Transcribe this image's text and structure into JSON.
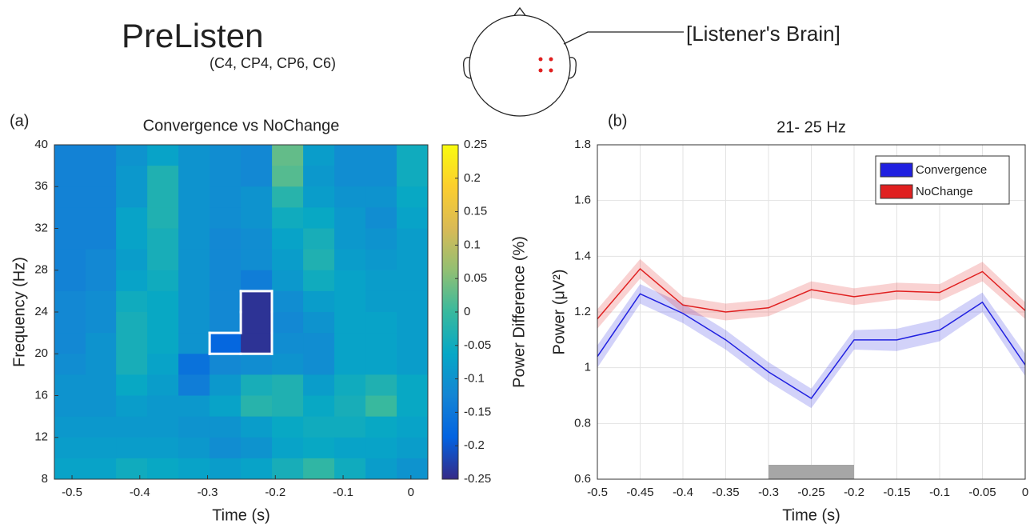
{
  "header": {
    "title": "PreListen",
    "subtitle": "(C4, CP4, CP6, C6)",
    "head_label": "[Listener's Brain]"
  },
  "chart_data": [
    {
      "type": "heatmap",
      "panel": "(a)",
      "title": "Convergence vs NoChange",
      "xlabel": "Time (s)",
      "ylabel": "Frequency (Hz)",
      "colorbar_label": "Power Difference (%)",
      "x": [
        -0.503,
        -0.457,
        -0.412,
        -0.366,
        -0.32,
        -0.274,
        -0.228,
        -0.182,
        -0.136,
        -0.09,
        -0.044,
        0.002
      ],
      "y": [
        39,
        37,
        35,
        33,
        31,
        29,
        27,
        25,
        23,
        21,
        19,
        17,
        15,
        13,
        11,
        9
      ],
      "z": [
        [
          -0.13,
          -0.13,
          -0.1,
          -0.07,
          -0.1,
          -0.11,
          -0.12,
          0.03,
          -0.08,
          -0.11,
          -0.11,
          -0.05
        ],
        [
          -0.13,
          -0.13,
          -0.09,
          -0.03,
          -0.1,
          -0.11,
          -0.12,
          0.02,
          -0.09,
          -0.11,
          -0.11,
          -0.05
        ],
        [
          -0.13,
          -0.13,
          -0.09,
          -0.03,
          -0.1,
          -0.11,
          -0.1,
          -0.02,
          -0.08,
          -0.1,
          -0.1,
          -0.06
        ],
        [
          -0.13,
          -0.13,
          -0.07,
          -0.03,
          -0.1,
          -0.11,
          -0.1,
          -0.05,
          -0.06,
          -0.09,
          -0.11,
          -0.07
        ],
        [
          -0.13,
          -0.13,
          -0.07,
          -0.04,
          -0.1,
          -0.12,
          -0.11,
          -0.07,
          -0.04,
          -0.09,
          -0.1,
          -0.08
        ],
        [
          -0.13,
          -0.12,
          -0.08,
          -0.04,
          -0.1,
          -0.12,
          -0.11,
          -0.08,
          -0.03,
          -0.08,
          -0.09,
          -0.08
        ],
        [
          -0.13,
          -0.12,
          -0.07,
          -0.05,
          -0.1,
          -0.12,
          -0.14,
          -0.09,
          -0.05,
          -0.07,
          -0.08,
          -0.08
        ],
        [
          -0.12,
          -0.11,
          -0.05,
          -0.06,
          -0.1,
          -0.12,
          -0.24,
          -0.11,
          -0.08,
          -0.07,
          -0.08,
          -0.08
        ],
        [
          -0.12,
          -0.11,
          -0.04,
          -0.06,
          -0.1,
          -0.12,
          -0.24,
          -0.12,
          -0.1,
          -0.07,
          -0.07,
          -0.08
        ],
        [
          -0.12,
          -0.1,
          -0.04,
          -0.06,
          -0.1,
          -0.18,
          -0.24,
          -0.11,
          -0.11,
          -0.07,
          -0.07,
          -0.08
        ],
        [
          -0.11,
          -0.1,
          -0.04,
          -0.07,
          -0.16,
          -0.12,
          -0.11,
          -0.1,
          -0.11,
          -0.07,
          -0.07,
          -0.08
        ],
        [
          -0.1,
          -0.1,
          -0.06,
          -0.08,
          -0.14,
          -0.09,
          -0.04,
          -0.03,
          -0.08,
          -0.05,
          -0.03,
          -0.06
        ],
        [
          -0.1,
          -0.1,
          -0.08,
          -0.09,
          -0.09,
          -0.07,
          -0.02,
          -0.03,
          -0.06,
          -0.04,
          0.0,
          -0.06
        ],
        [
          -0.09,
          -0.09,
          -0.09,
          -0.09,
          -0.1,
          -0.1,
          -0.08,
          -0.06,
          -0.05,
          -0.05,
          -0.06,
          -0.07
        ],
        [
          -0.08,
          -0.08,
          -0.08,
          -0.08,
          -0.09,
          -0.11,
          -0.1,
          -0.07,
          -0.06,
          -0.07,
          -0.07,
          -0.08
        ],
        [
          -0.07,
          -0.07,
          -0.05,
          -0.06,
          -0.07,
          -0.08,
          -0.07,
          -0.04,
          -0.01,
          -0.05,
          -0.08,
          -0.1
        ]
      ],
      "highlight": [
        [
          9,
          5
        ],
        [
          9,
          6
        ],
        [
          8,
          6
        ],
        [
          7,
          6
        ]
      ],
      "highlight_color": "#ffffff",
      "xlim": [
        -0.526,
        0.025
      ],
      "ylim": [
        8,
        40
      ],
      "clim": [
        -0.25,
        0.25
      ],
      "xticks": [
        -0.5,
        -0.4,
        -0.3,
        -0.2,
        -0.1,
        0
      ],
      "yticks": [
        8,
        12,
        16,
        20,
        24,
        28,
        32,
        36,
        40
      ],
      "cticks": [
        -0.25,
        -0.2,
        -0.15,
        -0.1,
        -0.05,
        0,
        0.05,
        0.1,
        0.15,
        0.2,
        0.25
      ],
      "colormap": [
        "#352a87",
        "#0363e1",
        "#1485d4",
        "#06a7c6",
        "#38b99e",
        "#92bf73",
        "#d9ba56",
        "#fcce2e",
        "#f9fb0e"
      ]
    },
    {
      "type": "line",
      "panel": "(b)",
      "title": "21- 25 Hz",
      "xlabel": "Time (s)",
      "ylabel": "Power (μV²)",
      "x": [
        -0.5,
        -0.45,
        -0.4,
        -0.35,
        -0.3,
        -0.25,
        -0.2,
        -0.15,
        -0.1,
        -0.05,
        0
      ],
      "series": [
        {
          "name": "Convergence",
          "color": "#2020e0",
          "values": [
            1.04,
            1.265,
            1.195,
            1.1,
            0.985,
            0.89,
            1.1,
            1.1,
            1.135,
            1.235,
            1.01
          ],
          "errors": [
            0.04,
            0.035,
            0.035,
            0.035,
            0.035,
            0.035,
            0.035,
            0.04,
            0.04,
            0.035,
            0.04
          ]
        },
        {
          "name": "NoChange",
          "color": "#e02020",
          "values": [
            1.175,
            1.355,
            1.225,
            1.2,
            1.215,
            1.28,
            1.255,
            1.275,
            1.27,
            1.345,
            1.205
          ],
          "errors": [
            0.035,
            0.035,
            0.03,
            0.03,
            0.03,
            0.03,
            0.03,
            0.03,
            0.03,
            0.035,
            0.03
          ]
        }
      ],
      "significance": [
        -0.3,
        -0.2
      ],
      "significance_color": "#a6a6a6",
      "xlim": [
        -0.5,
        0
      ],
      "ylim": [
        0.6,
        1.8
      ],
      "xticks": [
        -0.5,
        -0.45,
        -0.4,
        -0.35,
        -0.3,
        -0.25,
        -0.2,
        -0.15,
        -0.1,
        -0.05,
        0
      ],
      "yticks": [
        0.6,
        0.8,
        1,
        1.2,
        1.4,
        1.6,
        1.8
      ],
      "grid": true,
      "legend": "upper right"
    }
  ]
}
